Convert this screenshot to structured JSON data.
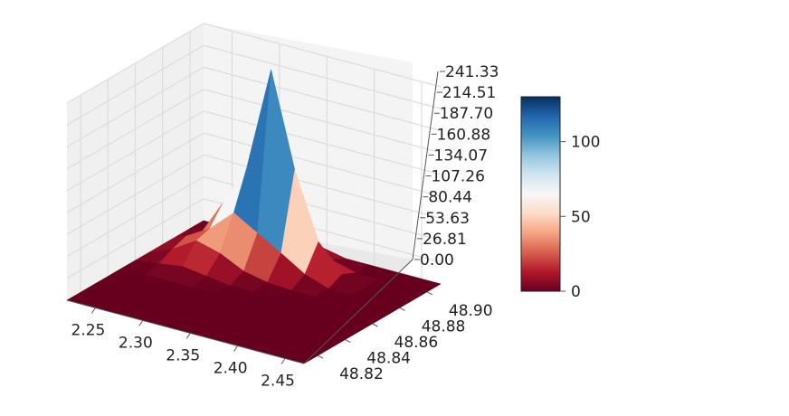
{
  "chart_data": {
    "type": "surface3d",
    "title": "",
    "xlabel": "",
    "ylabel": "",
    "zlabel": "",
    "colormap": "RdBu",
    "x_ticks": [
      "2.25",
      "2.30",
      "2.35",
      "2.40",
      "2.45"
    ],
    "y_ticks": [
      "48.82",
      "48.84",
      "48.86",
      "48.88",
      "48.90"
    ],
    "z_ticks": [
      "0.00",
      "26.81",
      "53.63",
      "80.44",
      "107.26",
      "134.07",
      "160.88",
      "187.70",
      "214.51",
      "241.33"
    ],
    "colorbar_ticks": [
      "0",
      "50",
      "100"
    ],
    "colorbar_range": [
      0,
      130
    ],
    "xlim": [
      2.22,
      2.47
    ],
    "ylim": [
      48.81,
      48.91
    ],
    "zlim": [
      0,
      241.33
    ],
    "x": [
      2.22,
      2.245,
      2.27,
      2.295,
      2.32,
      2.345,
      2.37,
      2.395,
      2.42,
      2.445,
      2.47
    ],
    "y": [
      48.81,
      48.82,
      48.83,
      48.84,
      48.85,
      48.86,
      48.87,
      48.88,
      48.89,
      48.9,
      48.91
    ],
    "z": [
      [
        0,
        0,
        0,
        0,
        0,
        0,
        0,
        0,
        0,
        0,
        0
      ],
      [
        0,
        0,
        0,
        0,
        0,
        0,
        0,
        0,
        0,
        0,
        0
      ],
      [
        0,
        0,
        0,
        0,
        0,
        0,
        0,
        0,
        0,
        0,
        0
      ],
      [
        0,
        0,
        0,
        0,
        0,
        0,
        0,
        0,
        0,
        0,
        0
      ],
      [
        0,
        0,
        0,
        0,
        0,
        0,
        0,
        0,
        0,
        0,
        0
      ],
      [
        0,
        4,
        8,
        4,
        0,
        0,
        0,
        0,
        0,
        0,
        0
      ],
      [
        0,
        12,
        30,
        22,
        8,
        2,
        0,
        0,
        0,
        0,
        0
      ],
      [
        0,
        18,
        35,
        62,
        45,
        28,
        10,
        0,
        0,
        0,
        0
      ],
      [
        0,
        10,
        58,
        110,
        235,
        120,
        40,
        8,
        0,
        0,
        0
      ],
      [
        0,
        6,
        30,
        95,
        70,
        20,
        8,
        0,
        0,
        0,
        0
      ],
      [
        0,
        0,
        12,
        25,
        15,
        6,
        0,
        0,
        0,
        0,
        0
      ]
    ]
  }
}
